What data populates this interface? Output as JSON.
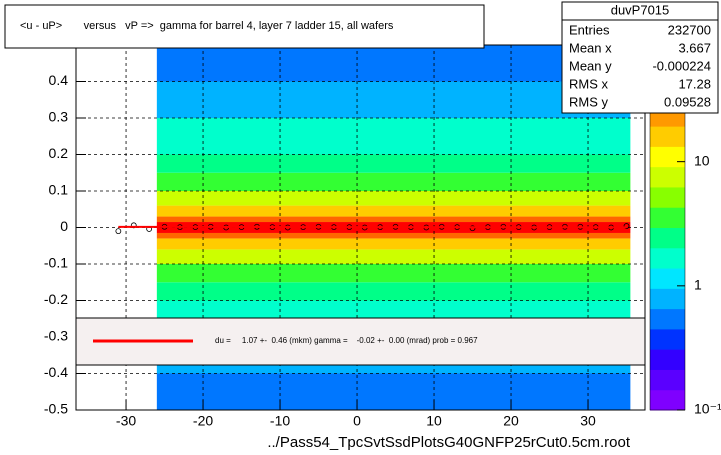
{
  "chart_data": {
    "type": "heatmap",
    "title": "<u - uP>       versus   vP =>  gamma for barrel 4, layer 7 ladder 15, all wafers",
    "x_label": "../Pass54_TpcSvtSsdPlotsG40GNFP25rCut0.5cm.root",
    "xlim": [
      -36.5,
      37.4
    ],
    "xticks": [
      -30,
      -20,
      -10,
      0,
      10,
      20,
      30
    ],
    "ylim": [
      -0.5,
      0.5
    ],
    "yticks": [
      -0.5,
      -0.4,
      -0.3,
      -0.2,
      -0.1,
      0,
      0.1,
      0.2,
      0.3,
      0.4
    ],
    "grid": true,
    "zlim": [
      0.1,
      87
    ],
    "zlog": true,
    "zticks": [
      {
        "value": 0.1,
        "label": "10⁻¹"
      },
      1,
      10
    ],
    "palette": [
      "#7f00ff",
      "#5a00ff",
      "#3300ff",
      "#0033ff",
      "#0077ff",
      "#00b3ff",
      "#00e6ff",
      "#00ffcc",
      "#00ff88",
      "#33ff33",
      "#88ff00",
      "#ccff00",
      "#ffff00",
      "#ffcc00",
      "#ff9900",
      "#ff6600",
      "#ff3300",
      "#ff0000"
    ],
    "heatmap": {
      "xrange": [
        -26,
        35.5
      ],
      "ybins": [
        -0.5,
        -0.4,
        -0.3,
        -0.2,
        -0.15,
        -0.1,
        -0.06,
        -0.03,
        -0.015,
        0,
        0.015,
        0.03,
        0.06,
        0.1,
        0.15,
        0.2,
        0.3,
        0.4,
        0.5
      ],
      "values": [
        0.5,
        0.9,
        1.5,
        2.5,
        4,
        7,
        14,
        30,
        70,
        70,
        30,
        14,
        7,
        4,
        2.5,
        1.5,
        0.9,
        0.5
      ]
    },
    "profile": {
      "color": "#000000",
      "x": [
        -31,
        -29,
        -27,
        -25,
        -23,
        -21,
        -19,
        -17,
        -15,
        -13,
        -11,
        -9,
        -7,
        -5,
        -3,
        -1,
        1,
        3,
        5,
        7,
        9,
        11,
        13,
        15,
        17,
        19,
        21,
        23,
        25,
        27,
        29,
        31,
        33,
        35
      ],
      "values": [
        -0.01,
        0.006,
        -0.004,
        0.002,
        0.001,
        0.001,
        0.002,
        0.0,
        0.001,
        0.002,
        0.001,
        0.0,
        0.001,
        0.002,
        0.001,
        0.001,
        0.0,
        0.001,
        0.002,
        0.001,
        0.0,
        0.002,
        0.001,
        -0.002,
        0.001,
        0.002,
        0.001,
        0.0,
        0.001,
        0.002,
        0.002,
        0.001,
        0.0,
        0.004
      ]
    },
    "fit": {
      "color": "#ff0000",
      "x": [
        -31,
        35
      ],
      "values": [
        0.00169,
        0.00037
      ],
      "label": "du =     1.07 +-  0.46 (mkm) gamma =    -0.02 +-  0.00 (mrad) prob = 0.967"
    },
    "stats": {
      "name": "duvP7015",
      "rows": [
        {
          "label": "Entries",
          "value": 232700
        },
        {
          "label": "Mean x",
          "value": 3.667
        },
        {
          "label": "Mean y",
          "value": -0.000224
        },
        {
          "label": "RMS x",
          "value": 17.28
        },
        {
          "label": "RMS y",
          "value": 0.09528
        }
      ]
    }
  }
}
